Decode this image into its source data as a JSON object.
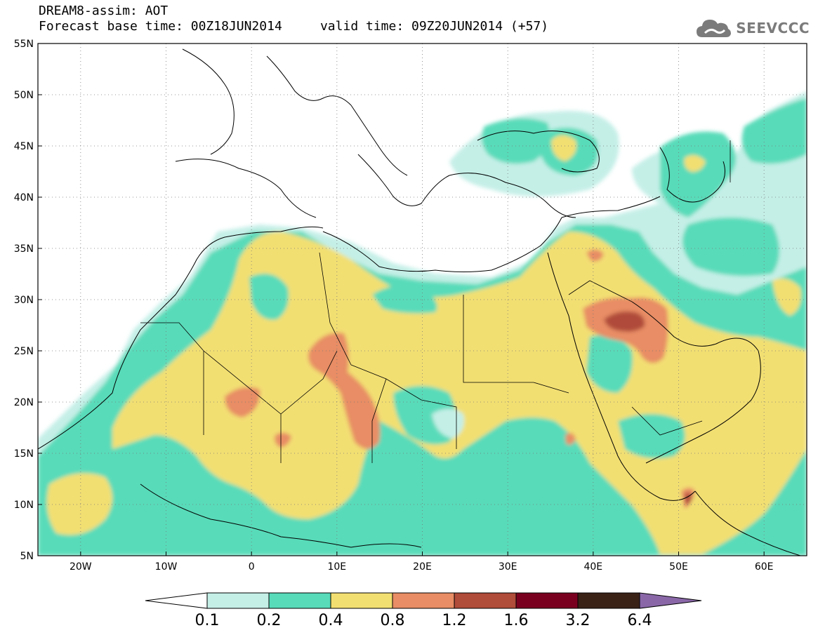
{
  "header": {
    "title_line1": "DREAM8-assim: AOT",
    "title_line2": "Forecast base time: 00Z18JUN2014     valid time: 09Z20JUN2014 (+57)",
    "logo_text": "SEEVCCC",
    "logo_icon": "cloud-icon"
  },
  "map": {
    "extent": {
      "lon_min": -25,
      "lon_max": 65,
      "lat_min": 5,
      "lat_max": 55
    },
    "lat_ticks": [
      {
        "value": 55,
        "label": "55N"
      },
      {
        "value": 50,
        "label": "50N"
      },
      {
        "value": 45,
        "label": "45N"
      },
      {
        "value": 40,
        "label": "40N"
      },
      {
        "value": 35,
        "label": "35N"
      },
      {
        "value": 30,
        "label": "30N"
      },
      {
        "value": 25,
        "label": "25N"
      },
      {
        "value": 20,
        "label": "20N"
      },
      {
        "value": 15,
        "label": "15N"
      },
      {
        "value": 10,
        "label": "10N"
      },
      {
        "value": 5,
        "label": "5N"
      }
    ],
    "lon_ticks": [
      {
        "value": -20,
        "label": "20W"
      },
      {
        "value": -10,
        "label": "10W"
      },
      {
        "value": 0,
        "label": "0"
      },
      {
        "value": 10,
        "label": "10E"
      },
      {
        "value": 20,
        "label": "20E"
      },
      {
        "value": 30,
        "label": "30E"
      },
      {
        "value": 40,
        "label": "40E"
      },
      {
        "value": 50,
        "label": "50E"
      },
      {
        "value": 60,
        "label": "60E"
      }
    ],
    "grid": "dotted"
  },
  "colorbar": {
    "below_color": "#ffffff",
    "above_color": "#8a68a8",
    "colors": [
      "#c4efe7",
      "#58dbb9",
      "#f2df72",
      "#e88d65",
      "#b04c3a",
      "#7a0020",
      "#3b2217"
    ],
    "labels": [
      "0.1",
      "0.2",
      "0.4",
      "0.8",
      "1.2",
      "1.6",
      "3.2",
      "6.4"
    ]
  }
}
